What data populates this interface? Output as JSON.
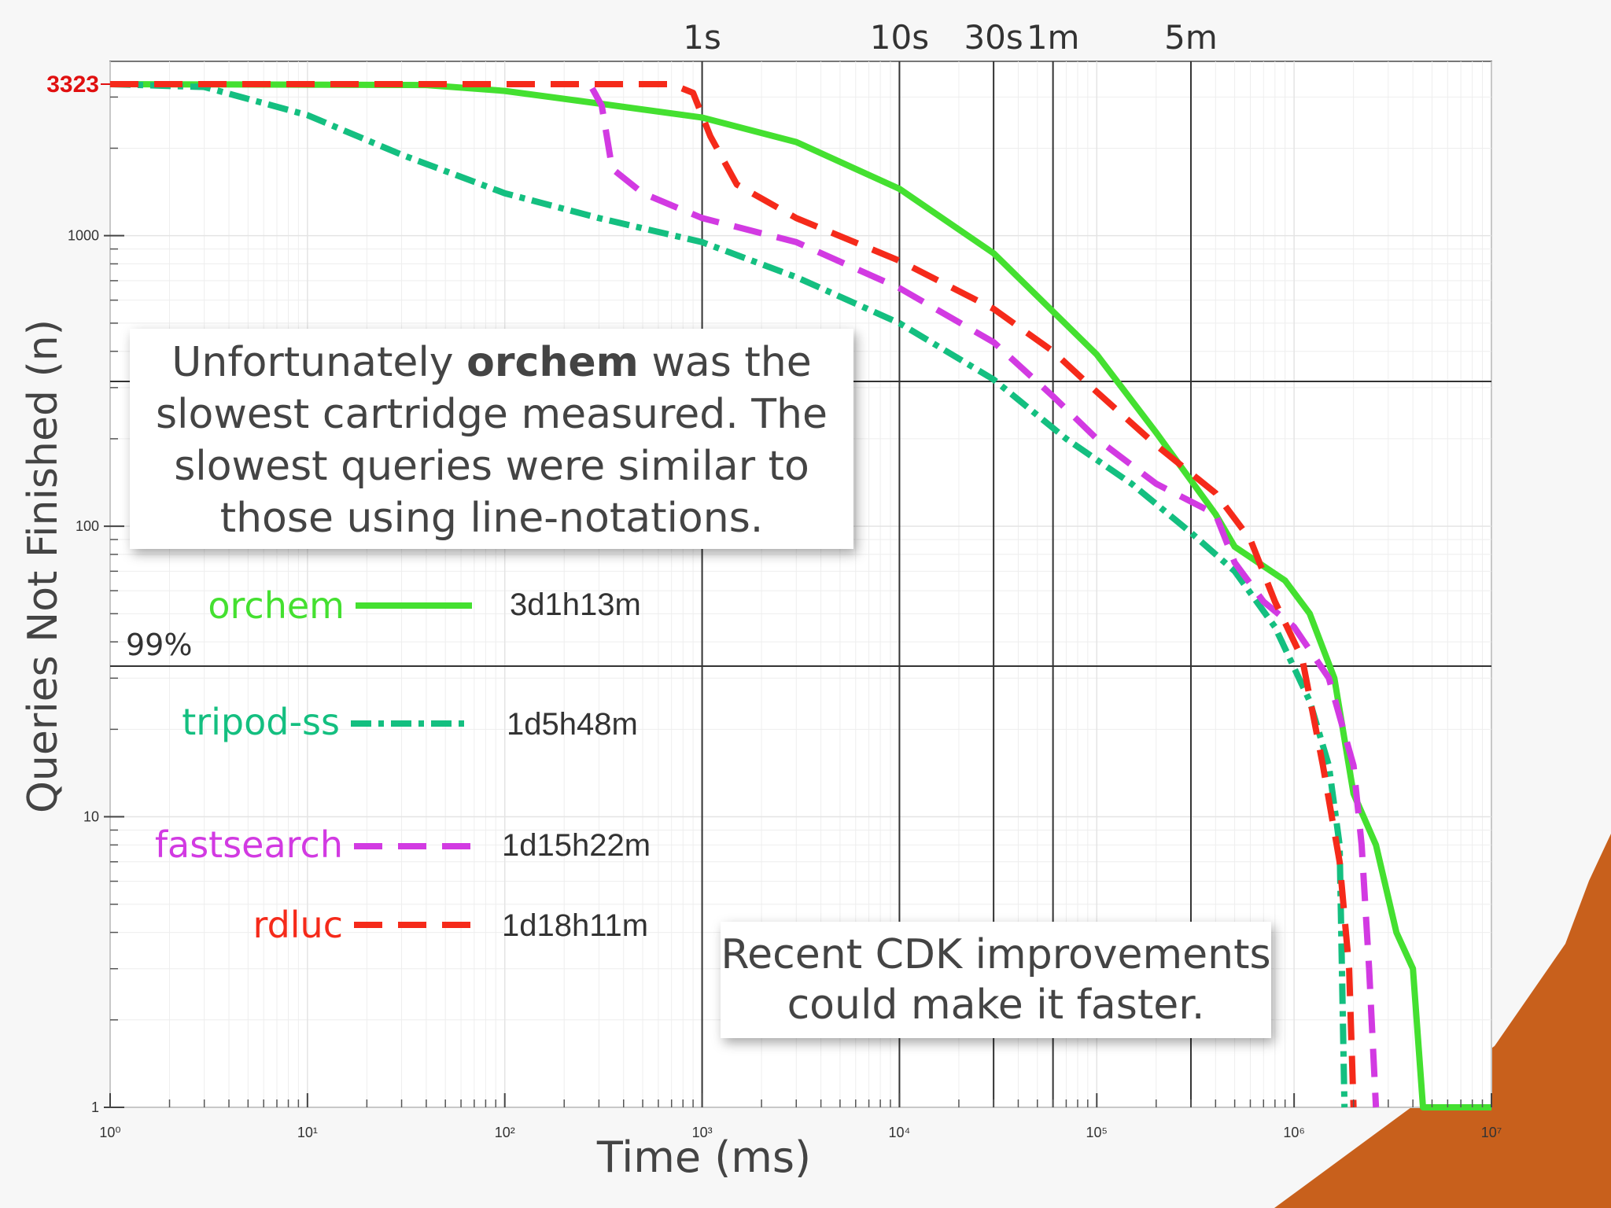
{
  "chart_data": {
    "type": "line",
    "xlabel": "Time (ms)",
    "ylabel": "Queries Not Finished (n)",
    "xscale": "log",
    "yscale": "log",
    "xlim": [
      1,
      10000000
    ],
    "ylim": [
      1,
      3323
    ],
    "grid": true,
    "x_ticks": [
      "10⁰",
      "10¹",
      "10²",
      "10³",
      "10⁴",
      "10⁵",
      "10⁶",
      "10⁷"
    ],
    "y_ticks": [
      "1",
      "10",
      "100",
      "1000"
    ],
    "y_highlight_label": "3323",
    "time_markers": [
      {
        "label": "1s",
        "x": 1000
      },
      {
        "label": "10s",
        "x": 10000
      },
      {
        "label": "30s",
        "x": 30000
      },
      {
        "label": "1m",
        "x": 60000
      },
      {
        "label": "5m",
        "x": 300000
      }
    ],
    "percent_marker": {
      "label": "99%",
      "y": 33
    },
    "series": [
      {
        "name": "orchem",
        "color": "#44e030",
        "style": "solid",
        "total": "3d1h13m",
        "points": [
          [
            1,
            3323
          ],
          [
            40,
            3300
          ],
          [
            100,
            3150
          ],
          [
            300,
            2850
          ],
          [
            1000,
            2550
          ],
          [
            3000,
            2100
          ],
          [
            10000,
            1450
          ],
          [
            30000,
            870
          ],
          [
            100000,
            390
          ],
          [
            200000,
            210
          ],
          [
            400000,
            110
          ],
          [
            500000,
            85
          ],
          [
            900000,
            65
          ],
          [
            1200000,
            50
          ],
          [
            1600000,
            30
          ],
          [
            2000000,
            12
          ],
          [
            2600000,
            8
          ],
          [
            3300000,
            4
          ],
          [
            4000000,
            3
          ],
          [
            4500000,
            1
          ],
          [
            10000000,
            1
          ]
        ]
      },
      {
        "name": "tripod-ss",
        "color": "#14bf80",
        "style": "dashdot",
        "total": "1d5h48m",
        "points": [
          [
            1,
            3323
          ],
          [
            3,
            3250
          ],
          [
            10,
            2600
          ],
          [
            30,
            1900
          ],
          [
            100,
            1400
          ],
          [
            300,
            1150
          ],
          [
            1000,
            950
          ],
          [
            3000,
            720
          ],
          [
            10000,
            500
          ],
          [
            30000,
            320
          ],
          [
            70000,
            200
          ],
          [
            150000,
            140
          ],
          [
            300000,
            95
          ],
          [
            500000,
            70
          ],
          [
            800000,
            45
          ],
          [
            1200000,
            25
          ],
          [
            1500000,
            15
          ],
          [
            1700000,
            8
          ],
          [
            1800000,
            1
          ]
        ]
      },
      {
        "name": "fastsearch",
        "color": "#d23ae2",
        "style": "dashed",
        "total": "1d15h22m",
        "points": [
          [
            1,
            3323
          ],
          [
            270,
            3323
          ],
          [
            310,
            2800
          ],
          [
            350,
            1700
          ],
          [
            500,
            1400
          ],
          [
            1000,
            1150
          ],
          [
            3000,
            950
          ],
          [
            10000,
            660
          ],
          [
            30000,
            430
          ],
          [
            60000,
            280
          ],
          [
            100000,
            200
          ],
          [
            200000,
            140
          ],
          [
            400000,
            110
          ],
          [
            500000,
            75
          ],
          [
            700000,
            55
          ],
          [
            1000000,
            45
          ],
          [
            1500000,
            30
          ],
          [
            2000000,
            15
          ],
          [
            2200000,
            8
          ],
          [
            2400000,
            3
          ],
          [
            2600000,
            1
          ]
        ]
      },
      {
        "name": "rdluc",
        "color": "#f52a1a",
        "style": "dashed",
        "total": "1d18h11m",
        "points": [
          [
            1,
            3323
          ],
          [
            700,
            3323
          ],
          [
            900,
            3100
          ],
          [
            1100,
            2200
          ],
          [
            1500,
            1500
          ],
          [
            3000,
            1150
          ],
          [
            10000,
            820
          ],
          [
            30000,
            560
          ],
          [
            60000,
            400
          ],
          [
            100000,
            290
          ],
          [
            200000,
            190
          ],
          [
            400000,
            130
          ],
          [
            600000,
            90
          ],
          [
            800000,
            55
          ],
          [
            1100000,
            35
          ],
          [
            1400000,
            15
          ],
          [
            1700000,
            7
          ],
          [
            1900000,
            3
          ],
          [
            2000000,
            1
          ]
        ]
      }
    ]
  },
  "legend": {
    "orchem": {
      "label": "orchem",
      "total": "3d1h13m"
    },
    "tripod": {
      "label": "tripod-ss",
      "total": "1d5h48m"
    },
    "fastsearch": {
      "label": "fastsearch",
      "total": "1d15h22m"
    },
    "rdluc": {
      "label": "rdluc",
      "total": "1d18h11m"
    }
  },
  "callout_main": {
    "line1_pre": "Unfortunately ",
    "line1_bold": "orchem",
    "line1_post": " was the",
    "line2": "slowest cartridge measured. The",
    "line3": "slowest queries were similar to",
    "line4": "those using line-notations."
  },
  "callout_cdk": {
    "line1": "Recent CDK improvements",
    "line2": "could make it faster."
  }
}
